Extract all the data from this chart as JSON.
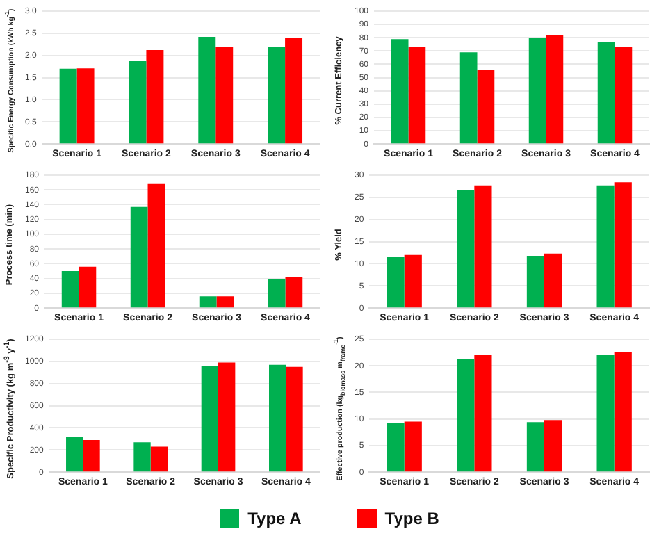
{
  "chart_data": [
    {
      "type": "bar",
      "ylabel": "Specific Energy Consumption (kWh kg$^{-1}$)",
      "categories": [
        "Scenario 1",
        "Scenario 2",
        "Scenario 3",
        "Scenario 4"
      ],
      "series": [
        {
          "color": "#00b050",
          "values": [
            1.7,
            1.87,
            2.42,
            2.19
          ]
        },
        {
          "color": "#ff0000",
          "values": [
            1.71,
            2.12,
            2.2,
            2.4
          ]
        }
      ],
      "ylim": [
        0,
        3
      ],
      "yticks": [
        {
          "value": 0,
          "label": "0.0"
        },
        {
          "value": 0.5,
          "label": "0.5"
        },
        {
          "value": 1,
          "label": "1.0"
        },
        {
          "value": 1.5,
          "label": "1.5"
        },
        {
          "value": 2,
          "label": "2.0"
        },
        {
          "value": 2.5,
          "label": "2.5"
        },
        {
          "value": 3,
          "label": "3.0"
        }
      ],
      "grid": "y"
    },
    {
      "type": "bar",
      "ylabel": "% Current Efficiency",
      "categories": [
        "Scenario 1",
        "Scenario 2",
        "Scenario 3",
        "Scenario 4"
      ],
      "series": [
        {
          "color": "#00b050",
          "values": [
            79,
            69,
            80,
            77
          ]
        },
        {
          "color": "#ff0000",
          "values": [
            73,
            56,
            82,
            73
          ]
        }
      ],
      "ylim": [
        0,
        100
      ],
      "yticks": [
        0,
        10,
        20,
        30,
        40,
        50,
        60,
        70,
        80,
        90,
        100
      ],
      "grid": "y"
    },
    {
      "type": "bar",
      "ylabel": "Process time (min)",
      "categories": [
        "Scenario 1",
        "Scenario 2",
        "Scenario 3",
        "Scenario 4"
      ],
      "series": [
        {
          "color": "#00b050",
          "values": [
            50,
            137,
            16,
            39
          ]
        },
        {
          "color": "#ff0000",
          "values": [
            56,
            169,
            16,
            42
          ]
        }
      ],
      "ylim": [
        0,
        180
      ],
      "yticks": [
        0,
        20,
        40,
        60,
        80,
        100,
        120,
        140,
        160,
        180
      ],
      "grid": "y"
    },
    {
      "type": "bar",
      "ylabel": "% Yield",
      "categories": [
        "Scenario 1",
        "Scenario 2",
        "Scenario 3",
        "Scenario 4"
      ],
      "series": [
        {
          "color": "#00b050",
          "values": [
            11.5,
            26.7,
            11.8,
            27.7
          ]
        },
        {
          "color": "#ff0000",
          "values": [
            12,
            27.7,
            12.3,
            28.4
          ]
        }
      ],
      "ylim": [
        0,
        30
      ],
      "yticks": [
        0,
        5,
        10,
        15,
        20,
        25,
        30
      ],
      "grid": "y"
    },
    {
      "type": "bar",
      "ylabel": "Specific Productivity (kg m$^{-3}$ y$^{-1}$)",
      "categories": [
        "Scenario 1",
        "Scenario 2",
        "Scenario 3",
        "Scenario 4"
      ],
      "series": [
        {
          "color": "#00b050",
          "values": [
            320,
            270,
            960,
            970
          ]
        },
        {
          "color": "#ff0000",
          "values": [
            290,
            230,
            990,
            950
          ]
        }
      ],
      "ylim": [
        0,
        1200
      ],
      "yticks": [
        0,
        200,
        400,
        600,
        800,
        1000,
        1200
      ],
      "grid": "y"
    },
    {
      "type": "bar",
      "ylabel": "Effective production (kg$_{biomass}$ m$_{frame}$$^{-1}$)",
      "categories": [
        "Scenario 1",
        "Scenario 2",
        "Scenario 3",
        "Scenario 4"
      ],
      "series": [
        {
          "name": "Type A",
          "color": "#00b050",
          "values": [
            9.2,
            21.3,
            9.4,
            22.1
          ]
        },
        {
          "name": "Type B",
          "color": "#ff0000",
          "values": [
            9.5,
            22,
            9.8,
            22.6
          ]
        }
      ],
      "ylim": [
        0,
        25
      ],
      "yticks": [
        0,
        5,
        10,
        15,
        20,
        25
      ],
      "grid": "y",
      "legend": "bottom"
    }
  ]
}
